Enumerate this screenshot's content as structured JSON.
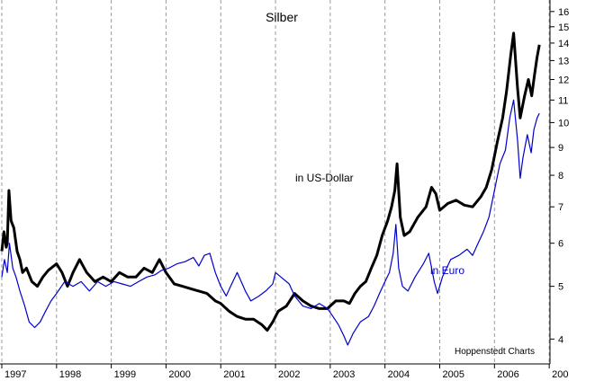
{
  "chart_data": {
    "type": "line",
    "title": "Silber",
    "xlabel": "",
    "ylabel": "",
    "x_ticks": [
      "1997",
      "1998",
      "1999",
      "2000",
      "2001",
      "2002",
      "2003",
      "2004",
      "2005",
      "2006",
      "200"
    ],
    "xlim": [
      1997.0,
      2006.85
    ],
    "y_scale": "log",
    "ylim": [
      3.6,
      16.8
    ],
    "y_ticks": [
      4,
      5,
      6,
      7,
      8,
      9,
      10,
      11,
      12,
      13,
      14,
      15,
      16
    ],
    "grid": {
      "vertical": true,
      "horizontal": false
    },
    "annotations": {
      "usd": "in US-Dollar",
      "eur": "in Euro",
      "source": "Hoppenstedt Charts"
    },
    "series": [
      {
        "name": "in US-Dollar",
        "color": "#000000",
        "points": [
          [
            1997.0,
            5.8
          ],
          [
            1997.04,
            6.3
          ],
          [
            1997.08,
            5.9
          ],
          [
            1997.1,
            6.0
          ],
          [
            1997.13,
            7.5
          ],
          [
            1997.17,
            6.6
          ],
          [
            1997.22,
            6.4
          ],
          [
            1997.28,
            5.8
          ],
          [
            1997.33,
            5.6
          ],
          [
            1997.38,
            5.3
          ],
          [
            1997.45,
            5.4
          ],
          [
            1997.55,
            5.1
          ],
          [
            1997.65,
            5.0
          ],
          [
            1997.75,
            5.2
          ],
          [
            1997.85,
            5.35
          ],
          [
            1998.0,
            5.5
          ],
          [
            1998.1,
            5.3
          ],
          [
            1998.2,
            5.0
          ],
          [
            1998.3,
            5.3
          ],
          [
            1998.42,
            5.6
          ],
          [
            1998.55,
            5.3
          ],
          [
            1998.7,
            5.1
          ],
          [
            1998.85,
            5.2
          ],
          [
            1999.0,
            5.1
          ],
          [
            1999.15,
            5.3
          ],
          [
            1999.3,
            5.2
          ],
          [
            1999.45,
            5.2
          ],
          [
            1999.6,
            5.4
          ],
          [
            1999.75,
            5.3
          ],
          [
            1999.88,
            5.6
          ],
          [
            2000.0,
            5.3
          ],
          [
            2000.15,
            5.05
          ],
          [
            2000.3,
            5.0
          ],
          [
            2000.45,
            4.95
          ],
          [
            2000.6,
            4.9
          ],
          [
            2000.75,
            4.85
          ],
          [
            2000.9,
            4.7
          ],
          [
            2001.0,
            4.65
          ],
          [
            2001.15,
            4.5
          ],
          [
            2001.3,
            4.4
          ],
          [
            2001.45,
            4.35
          ],
          [
            2001.6,
            4.35
          ],
          [
            2001.75,
            4.25
          ],
          [
            2001.85,
            4.15
          ],
          [
            2001.95,
            4.3
          ],
          [
            2002.05,
            4.5
          ],
          [
            2002.2,
            4.6
          ],
          [
            2002.35,
            4.85
          ],
          [
            2002.5,
            4.7
          ],
          [
            2002.65,
            4.6
          ],
          [
            2002.8,
            4.55
          ],
          [
            2002.95,
            4.55
          ],
          [
            2003.1,
            4.7
          ],
          [
            2003.25,
            4.7
          ],
          [
            2003.35,
            4.65
          ],
          [
            2003.45,
            4.85
          ],
          [
            2003.55,
            5.0
          ],
          [
            2003.65,
            5.1
          ],
          [
            2003.75,
            5.4
          ],
          [
            2003.85,
            5.7
          ],
          [
            2003.95,
            6.2
          ],
          [
            2004.05,
            6.6
          ],
          [
            2004.12,
            7.0
          ],
          [
            2004.18,
            7.5
          ],
          [
            2004.22,
            8.4
          ],
          [
            2004.28,
            6.7
          ],
          [
            2004.35,
            6.2
          ],
          [
            2004.45,
            6.3
          ],
          [
            2004.6,
            6.7
          ],
          [
            2004.75,
            7.0
          ],
          [
            2004.85,
            7.6
          ],
          [
            2004.93,
            7.4
          ],
          [
            2005.0,
            6.9
          ],
          [
            2005.15,
            7.1
          ],
          [
            2005.3,
            7.2
          ],
          [
            2005.45,
            7.05
          ],
          [
            2005.6,
            7.0
          ],
          [
            2005.75,
            7.3
          ],
          [
            2005.85,
            7.6
          ],
          [
            2005.95,
            8.2
          ],
          [
            2006.05,
            9.2
          ],
          [
            2006.15,
            10.2
          ],
          [
            2006.22,
            11.4
          ],
          [
            2006.3,
            13.4
          ],
          [
            2006.35,
            14.6
          ],
          [
            2006.42,
            11.6
          ],
          [
            2006.47,
            10.2
          ],
          [
            2006.55,
            11.2
          ],
          [
            2006.62,
            12.0
          ],
          [
            2006.68,
            11.2
          ],
          [
            2006.73,
            12.2
          ],
          [
            2006.78,
            13.2
          ],
          [
            2006.82,
            13.9
          ]
        ]
      },
      {
        "name": "in Euro",
        "color": "#0000cc",
        "points": [
          [
            1997.0,
            5.2
          ],
          [
            1997.05,
            5.6
          ],
          [
            1997.1,
            5.3
          ],
          [
            1997.14,
            6.0
          ],
          [
            1997.2,
            5.4
          ],
          [
            1997.26,
            5.2
          ],
          [
            1997.33,
            4.9
          ],
          [
            1997.42,
            4.6
          ],
          [
            1997.5,
            4.3
          ],
          [
            1997.6,
            4.2
          ],
          [
            1997.7,
            4.3
          ],
          [
            1997.8,
            4.5
          ],
          [
            1997.9,
            4.7
          ],
          [
            1998.0,
            4.85
          ],
          [
            1998.15,
            5.1
          ],
          [
            1998.3,
            5.0
          ],
          [
            1998.45,
            5.1
          ],
          [
            1998.6,
            4.9
          ],
          [
            1998.75,
            5.1
          ],
          [
            1998.9,
            5.0
          ],
          [
            1999.05,
            5.1
          ],
          [
            1999.2,
            5.05
          ],
          [
            1999.35,
            5.0
          ],
          [
            1999.5,
            5.1
          ],
          [
            1999.65,
            5.2
          ],
          [
            1999.8,
            5.25
          ],
          [
            1999.92,
            5.35
          ],
          [
            2000.05,
            5.4
          ],
          [
            2000.2,
            5.5
          ],
          [
            2000.35,
            5.55
          ],
          [
            2000.5,
            5.65
          ],
          [
            2000.6,
            5.45
          ],
          [
            2000.7,
            5.7
          ],
          [
            2000.8,
            5.75
          ],
          [
            2000.9,
            5.3
          ],
          [
            2001.0,
            5.0
          ],
          [
            2001.1,
            4.8
          ],
          [
            2001.2,
            5.05
          ],
          [
            2001.3,
            5.3
          ],
          [
            2001.45,
            4.9
          ],
          [
            2001.55,
            4.7
          ],
          [
            2001.7,
            4.8
          ],
          [
            2001.82,
            4.9
          ],
          [
            2001.95,
            5.05
          ],
          [
            2002.0,
            5.3
          ],
          [
            2002.1,
            5.2
          ],
          [
            2002.25,
            5.05
          ],
          [
            2002.35,
            4.8
          ],
          [
            2002.5,
            4.6
          ],
          [
            2002.65,
            4.55
          ],
          [
            2002.8,
            4.65
          ],
          [
            2002.95,
            4.55
          ],
          [
            2003.05,
            4.4
          ],
          [
            2003.15,
            4.25
          ],
          [
            2003.25,
            4.05
          ],
          [
            2003.32,
            3.9
          ],
          [
            2003.42,
            4.1
          ],
          [
            2003.55,
            4.3
          ],
          [
            2003.7,
            4.4
          ],
          [
            2003.8,
            4.6
          ],
          [
            2003.9,
            4.85
          ],
          [
            2004.0,
            5.1
          ],
          [
            2004.08,
            5.3
          ],
          [
            2004.15,
            5.75
          ],
          [
            2004.2,
            6.5
          ],
          [
            2004.25,
            5.4
          ],
          [
            2004.32,
            5.0
          ],
          [
            2004.42,
            4.9
          ],
          [
            2004.55,
            5.2
          ],
          [
            2004.7,
            5.5
          ],
          [
            2004.8,
            5.75
          ],
          [
            2004.9,
            5.1
          ],
          [
            2004.96,
            4.85
          ],
          [
            2005.05,
            5.2
          ],
          [
            2005.2,
            5.6
          ],
          [
            2005.35,
            5.7
          ],
          [
            2005.5,
            5.85
          ],
          [
            2005.6,
            5.7
          ],
          [
            2005.7,
            6.0
          ],
          [
            2005.8,
            6.3
          ],
          [
            2005.9,
            6.7
          ],
          [
            2006.0,
            7.5
          ],
          [
            2006.1,
            8.4
          ],
          [
            2006.2,
            8.9
          ],
          [
            2006.28,
            10.2
          ],
          [
            2006.35,
            11.0
          ],
          [
            2006.42,
            9.3
          ],
          [
            2006.47,
            7.9
          ],
          [
            2006.52,
            8.6
          ],
          [
            2006.6,
            9.5
          ],
          [
            2006.67,
            8.8
          ],
          [
            2006.72,
            9.7
          ],
          [
            2006.78,
            10.2
          ],
          [
            2006.82,
            10.4
          ]
        ]
      }
    ]
  }
}
